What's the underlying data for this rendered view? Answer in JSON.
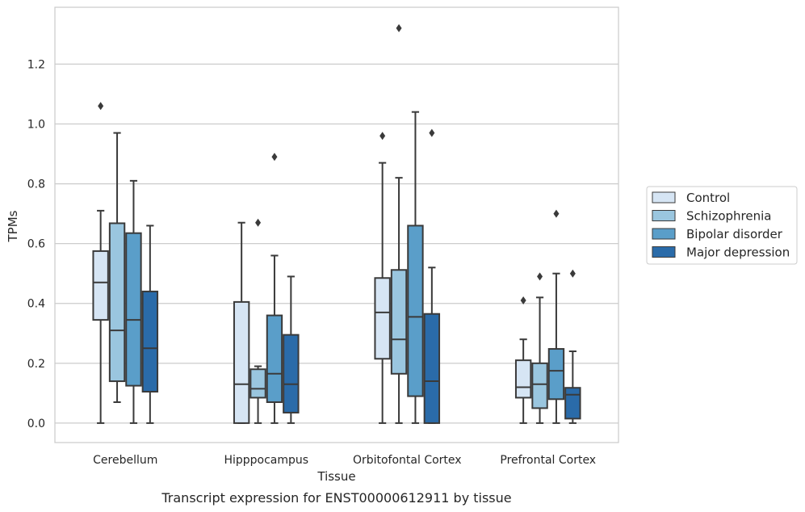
{
  "caption": "Transcript expression for ENST00000612911 by tissue",
  "chart_data": {
    "type": "box",
    "xlabel": "Tissue",
    "ylabel": "TPMs",
    "ylim": [
      -0.065,
      1.39
    ],
    "yticks": [
      0.0,
      0.2,
      0.4,
      0.6,
      0.8,
      1.0,
      1.2
    ],
    "ytick_labels": [
      "0.0",
      "0.2",
      "0.4",
      "0.6",
      "0.8",
      "1.0",
      "1.2"
    ],
    "grid": "horizontal",
    "legend_position": "right",
    "categories": [
      "Cerebellum",
      "Hipppocampus",
      "Orbitofontal Cortex",
      "Prefrontal Cortex"
    ],
    "series": [
      {
        "name": "Control",
        "color": "#d6e5f4",
        "boxes": [
          {
            "whislo": 0.0,
            "q1": 0.345,
            "med": 0.47,
            "q3": 0.575,
            "whishi": 0.71,
            "fliers": [
              1.06
            ]
          },
          {
            "whislo": 0.0,
            "q1": 0.0,
            "med": 0.13,
            "q3": 0.405,
            "whishi": 0.67,
            "fliers": []
          },
          {
            "whislo": 0.0,
            "q1": 0.215,
            "med": 0.37,
            "q3": 0.485,
            "whishi": 0.87,
            "fliers": [
              0.96
            ]
          },
          {
            "whislo": 0.0,
            "q1": 0.085,
            "med": 0.12,
            "q3": 0.21,
            "whishi": 0.28,
            "fliers": [
              0.41
            ]
          }
        ]
      },
      {
        "name": "Schizophrenia",
        "color": "#9ac6df",
        "boxes": [
          {
            "whislo": 0.07,
            "q1": 0.14,
            "med": 0.31,
            "q3": 0.668,
            "whishi": 0.97,
            "fliers": []
          },
          {
            "whislo": 0.0,
            "q1": 0.085,
            "med": 0.115,
            "q3": 0.18,
            "whishi": 0.19,
            "fliers": [
              0.67
            ]
          },
          {
            "whislo": 0.0,
            "q1": 0.165,
            "med": 0.28,
            "q3": 0.512,
            "whishi": 0.82,
            "fliers": [
              1.32
            ]
          },
          {
            "whislo": 0.0,
            "q1": 0.05,
            "med": 0.13,
            "q3": 0.2,
            "whishi": 0.42,
            "fliers": [
              0.49
            ]
          }
        ]
      },
      {
        "name": "Bipolar disorder",
        "color": "#5a9ec9",
        "boxes": [
          {
            "whislo": 0.0,
            "q1": 0.125,
            "med": 0.345,
            "q3": 0.635,
            "whishi": 0.81,
            "fliers": []
          },
          {
            "whislo": 0.0,
            "q1": 0.07,
            "med": 0.165,
            "q3": 0.36,
            "whishi": 0.56,
            "fliers": [
              0.89
            ]
          },
          {
            "whislo": 0.0,
            "q1": 0.09,
            "med": 0.355,
            "q3": 0.66,
            "whishi": 1.04,
            "fliers": []
          },
          {
            "whislo": 0.0,
            "q1": 0.08,
            "med": 0.175,
            "q3": 0.248,
            "whishi": 0.5,
            "fliers": [
              0.7
            ]
          }
        ]
      },
      {
        "name": "Major depression",
        "color": "#2a6ba9",
        "boxes": [
          {
            "whislo": 0.0,
            "q1": 0.105,
            "med": 0.25,
            "q3": 0.44,
            "whishi": 0.66,
            "fliers": []
          },
          {
            "whislo": 0.0,
            "q1": 0.035,
            "med": 0.13,
            "q3": 0.295,
            "whishi": 0.49,
            "fliers": []
          },
          {
            "whislo": 0.0,
            "q1": 0.0,
            "med": 0.14,
            "q3": 0.365,
            "whishi": 0.52,
            "fliers": [
              0.97
            ]
          },
          {
            "whislo": 0.0,
            "q1": 0.015,
            "med": 0.095,
            "q3": 0.118,
            "whishi": 0.24,
            "fliers": [
              0.5
            ]
          }
        ]
      }
    ]
  }
}
